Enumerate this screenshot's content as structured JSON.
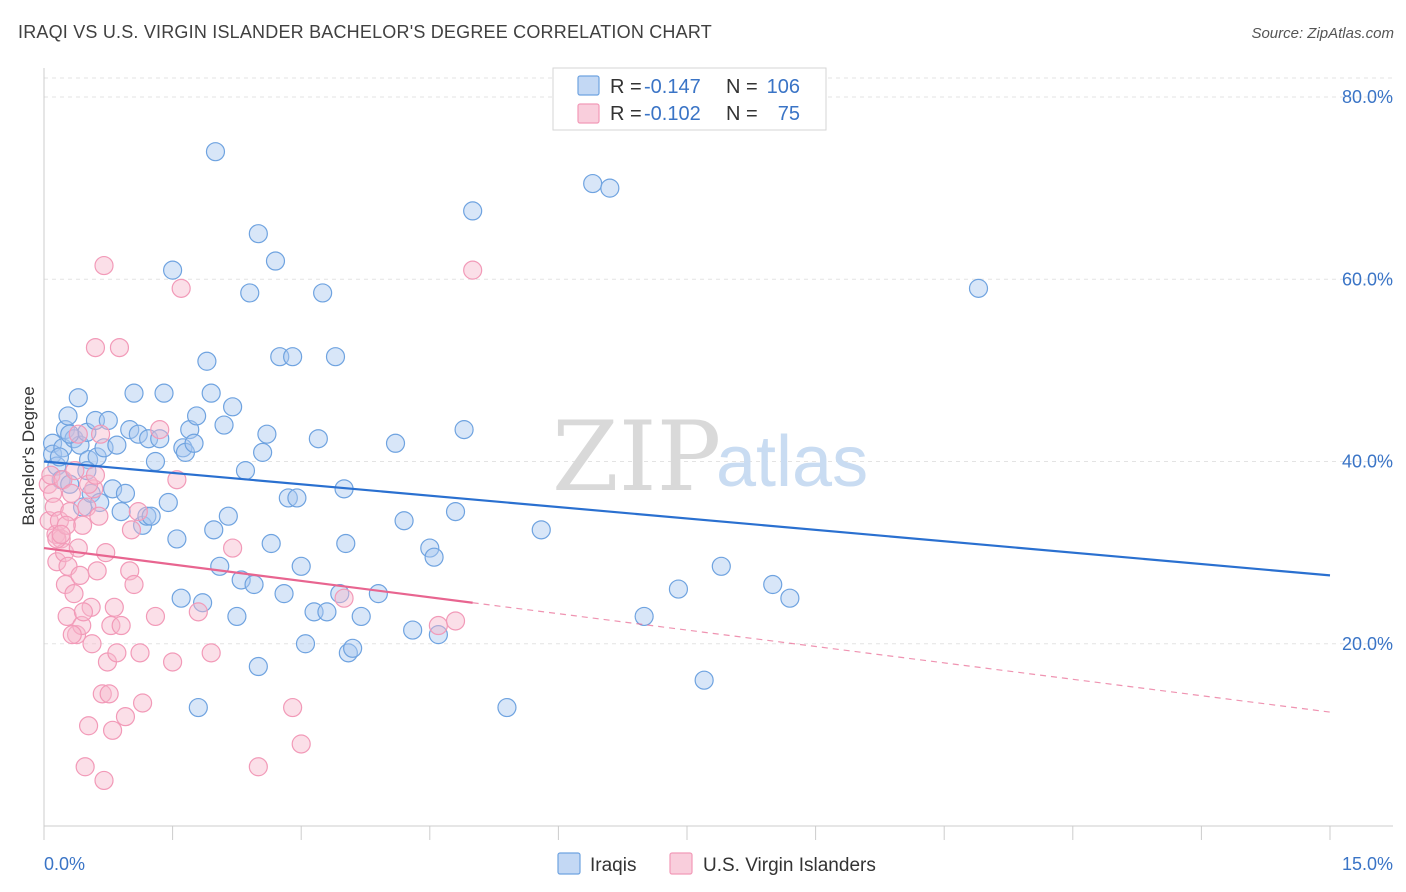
{
  "header": {
    "title": "IRAQI VS U.S. VIRGIN ISLANDER BACHELOR'S DEGREE CORRELATION CHART",
    "source": "Source: ZipAtlas.com"
  },
  "watermark": {
    "zip": "ZIP",
    "atlas": "atlas"
  },
  "legend": {
    "r_label": "R =",
    "n_label": "N =",
    "rows": [
      {
        "series": "Iraqis",
        "r": "-0.147",
        "n": "106",
        "color": "#6fa3e0"
      },
      {
        "series": "U.S. Virgin Islanders",
        "r": "-0.102",
        "n": "75",
        "color": "#f29ab8"
      }
    ]
  },
  "colors": {
    "iraqis_fill": "#a9c8ef",
    "iraqis_stroke": "#6fa3e0",
    "iraqis_line": "#2a70d0",
    "virgin_fill": "#f6b9cd",
    "virgin_stroke": "#f29ab8",
    "virgin_line": "#e86590",
    "tick_label": "#3a74c6"
  },
  "chart_data": {
    "type": "scatter",
    "title": "IRAQI VS U.S. VIRGIN ISLANDER BACHELOR'S DEGREE CORRELATION CHART",
    "xlabel": "",
    "ylabel": "Bachelor's Degree",
    "xlim": [
      0,
      15
    ],
    "ylim": [
      0,
      82
    ],
    "x_tick_labels": [
      "0.0%",
      "15.0%"
    ],
    "y_ticks": [
      20,
      40,
      60,
      80
    ],
    "y_tick_labels": [
      "20.0%",
      "40.0%",
      "60.0%",
      "80.0%"
    ],
    "grid": true,
    "legend_position": "top-center",
    "series": [
      {
        "name": "Iraqis",
        "points": [
          [
            0.1,
            42.0
          ],
          [
            0.1,
            40.8
          ],
          [
            0.15,
            39.5
          ],
          [
            0.2,
            38.0
          ],
          [
            0.22,
            41.5
          ],
          [
            0.25,
            43.5
          ],
          [
            0.28,
            45.0
          ],
          [
            0.3,
            37.5
          ],
          [
            0.35,
            42.5
          ],
          [
            0.4,
            47.0
          ],
          [
            0.42,
            41.8
          ],
          [
            0.45,
            35.0
          ],
          [
            0.5,
            43.2
          ],
          [
            0.52,
            40.2
          ],
          [
            0.55,
            36.5
          ],
          [
            0.6,
            44.5
          ],
          [
            0.62,
            40.5
          ],
          [
            0.7,
            41.5
          ],
          [
            0.75,
            44.5
          ],
          [
            0.8,
            37.0
          ],
          [
            0.85,
            41.8
          ],
          [
            0.9,
            34.5
          ],
          [
            0.95,
            36.5
          ],
          [
            1.0,
            43.5
          ],
          [
            1.05,
            47.5
          ],
          [
            1.1,
            43.0
          ],
          [
            1.15,
            33.0
          ],
          [
            1.2,
            34.0
          ],
          [
            1.22,
            42.5
          ],
          [
            1.3,
            40.0
          ],
          [
            1.35,
            42.5
          ],
          [
            1.4,
            47.5
          ],
          [
            1.45,
            35.5
          ],
          [
            1.5,
            61.0
          ],
          [
            1.55,
            31.5
          ],
          [
            1.6,
            25.0
          ],
          [
            1.62,
            41.5
          ],
          [
            1.65,
            41.0
          ],
          [
            1.7,
            43.5
          ],
          [
            1.75,
            42.0
          ],
          [
            1.78,
            45.0
          ],
          [
            1.8,
            13.0
          ],
          [
            1.85,
            24.5
          ],
          [
            1.9,
            51.0
          ],
          [
            1.95,
            47.5
          ],
          [
            1.98,
            32.5
          ],
          [
            2.0,
            74.0
          ],
          [
            2.05,
            28.5
          ],
          [
            2.1,
            44.0
          ],
          [
            2.15,
            34.0
          ],
          [
            2.2,
            46.0
          ],
          [
            2.25,
            23.0
          ],
          [
            2.3,
            27.0
          ],
          [
            2.35,
            39.0
          ],
          [
            2.4,
            58.5
          ],
          [
            2.45,
            26.5
          ],
          [
            2.5,
            65.0
          ],
          [
            2.55,
            41.0
          ],
          [
            2.6,
            43.0
          ],
          [
            2.65,
            31.0
          ],
          [
            2.7,
            62.0
          ],
          [
            2.75,
            51.5
          ],
          [
            2.8,
            25.5
          ],
          [
            2.85,
            36.0
          ],
          [
            2.9,
            51.5
          ],
          [
            3.0,
            28.5
          ],
          [
            3.05,
            20.0
          ],
          [
            3.15,
            23.5
          ],
          [
            3.2,
            42.5
          ],
          [
            3.25,
            58.5
          ],
          [
            3.3,
            23.5
          ],
          [
            3.4,
            51.5
          ],
          [
            3.45,
            25.5
          ],
          [
            3.5,
            37.0
          ],
          [
            3.52,
            31.0
          ],
          [
            3.55,
            19.0
          ],
          [
            3.6,
            19.5
          ],
          [
            3.7,
            23.0
          ],
          [
            3.9,
            25.5
          ],
          [
            4.1,
            42.0
          ],
          [
            4.2,
            33.5
          ],
          [
            4.3,
            21.5
          ],
          [
            4.5,
            30.5
          ],
          [
            4.55,
            29.5
          ],
          [
            4.6,
            21.0
          ],
          [
            4.8,
            34.5
          ],
          [
            4.9,
            43.5
          ],
          [
            5.0,
            67.5
          ],
          [
            5.4,
            13.0
          ],
          [
            5.8,
            32.5
          ],
          [
            6.4,
            70.5
          ],
          [
            6.6,
            70.0
          ],
          [
            7.0,
            23.0
          ],
          [
            7.4,
            26.0
          ],
          [
            7.7,
            16.0
          ],
          [
            7.9,
            28.5
          ],
          [
            8.5,
            26.5
          ],
          [
            8.7,
            25.0
          ],
          [
            10.9,
            59.0
          ],
          [
            2.5,
            17.5
          ],
          [
            0.3,
            43.0
          ],
          [
            0.18,
            40.5
          ],
          [
            0.65,
            35.5
          ],
          [
            1.25,
            34.0
          ],
          [
            0.5,
            39.0
          ],
          [
            2.95,
            36.0
          ]
        ],
        "trend": {
          "x": [
            0,
            15
          ],
          "y": [
            40.0,
            27.5
          ]
        }
      },
      {
        "name": "U.S. Virgin Islanders",
        "points": [
          [
            0.05,
            37.5
          ],
          [
            0.06,
            33.5
          ],
          [
            0.08,
            38.5
          ],
          [
            0.1,
            36.5
          ],
          [
            0.12,
            35.0
          ],
          [
            0.14,
            32.0
          ],
          [
            0.15,
            29.0
          ],
          [
            0.18,
            33.5
          ],
          [
            0.2,
            31.5
          ],
          [
            0.22,
            38.0
          ],
          [
            0.24,
            30.0
          ],
          [
            0.25,
            26.5
          ],
          [
            0.27,
            23.0
          ],
          [
            0.28,
            28.5
          ],
          [
            0.3,
            34.5
          ],
          [
            0.32,
            36.5
          ],
          [
            0.35,
            25.5
          ],
          [
            0.36,
            39.0
          ],
          [
            0.38,
            21.0
          ],
          [
            0.4,
            43.0
          ],
          [
            0.42,
            27.5
          ],
          [
            0.44,
            22.0
          ],
          [
            0.45,
            33.0
          ],
          [
            0.48,
            6.5
          ],
          [
            0.5,
            35.0
          ],
          [
            0.52,
            11.0
          ],
          [
            0.55,
            24.0
          ],
          [
            0.56,
            20.0
          ],
          [
            0.58,
            37.0
          ],
          [
            0.6,
            52.5
          ],
          [
            0.62,
            28.0
          ],
          [
            0.64,
            34.0
          ],
          [
            0.66,
            43.0
          ],
          [
            0.68,
            14.5
          ],
          [
            0.7,
            5.0
          ],
          [
            0.72,
            30.0
          ],
          [
            0.74,
            18.0
          ],
          [
            0.76,
            14.5
          ],
          [
            0.78,
            22.0
          ],
          [
            0.8,
            10.5
          ],
          [
            0.82,
            24.0
          ],
          [
            0.85,
            19.0
          ],
          [
            0.88,
            52.5
          ],
          [
            0.9,
            22.0
          ],
          [
            0.95,
            12.0
          ],
          [
            1.0,
            28.0
          ],
          [
            1.02,
            32.5
          ],
          [
            1.05,
            26.5
          ],
          [
            1.1,
            34.5
          ],
          [
            1.12,
            19.0
          ],
          [
            1.15,
            13.5
          ],
          [
            1.3,
            23.0
          ],
          [
            1.35,
            43.5
          ],
          [
            1.5,
            18.0
          ],
          [
            1.55,
            38.0
          ],
          [
            1.6,
            59.0
          ],
          [
            1.8,
            23.5
          ],
          [
            1.95,
            19.0
          ],
          [
            2.2,
            30.5
          ],
          [
            2.5,
            6.5
          ],
          [
            2.9,
            13.0
          ],
          [
            3.0,
            9.0
          ],
          [
            0.7,
            61.5
          ],
          [
            3.5,
            25.0
          ],
          [
            4.6,
            22.0
          ],
          [
            4.8,
            22.5
          ],
          [
            5.0,
            61.0
          ],
          [
            0.15,
            31.5
          ],
          [
            0.26,
            33.0
          ],
          [
            0.46,
            23.5
          ],
          [
            0.33,
            21.0
          ],
          [
            0.52,
            37.5
          ],
          [
            0.2,
            32.0
          ],
          [
            0.4,
            30.5
          ],
          [
            0.6,
            38.5
          ]
        ],
        "trend": {
          "x": [
            0,
            5.0
          ],
          "y": [
            30.5,
            24.5
          ],
          "dashed_x": [
            5.0,
            15
          ],
          "dashed_y": [
            24.5,
            12.5
          ]
        }
      }
    ]
  }
}
